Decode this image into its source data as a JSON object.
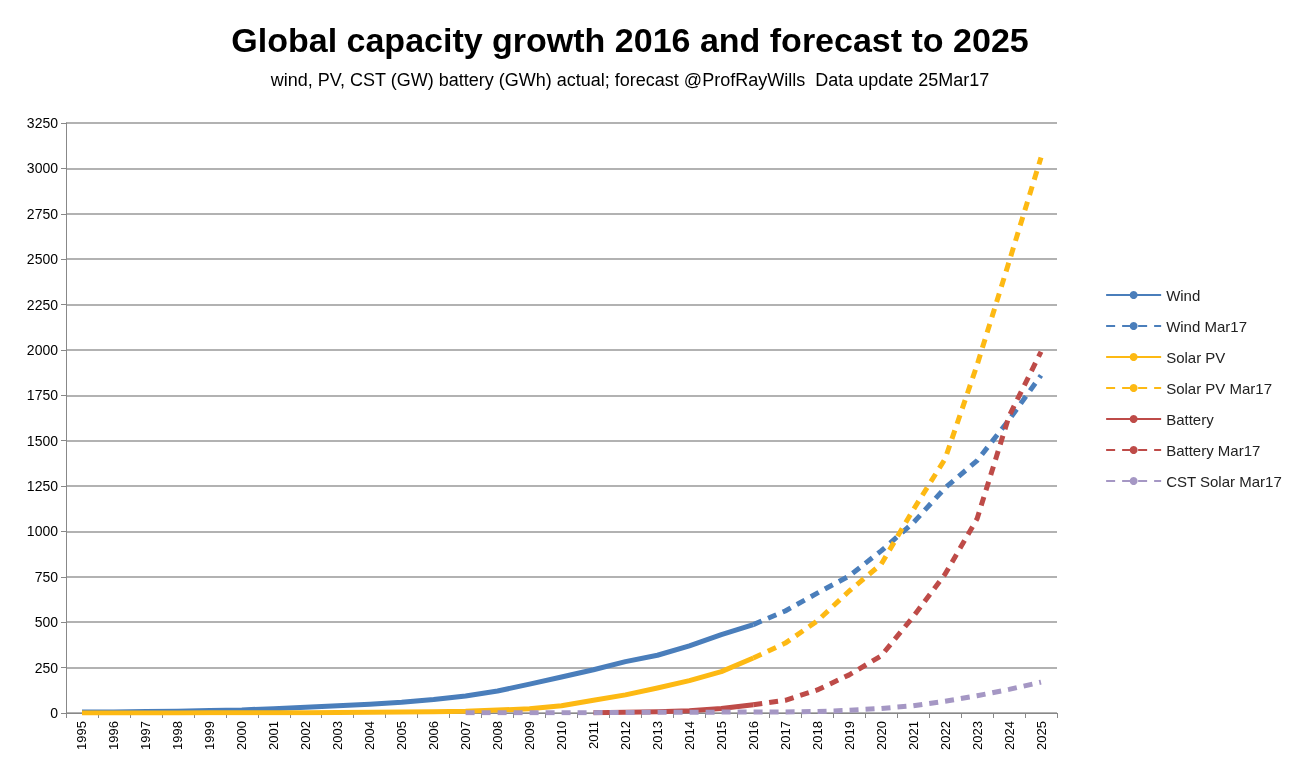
{
  "chart_data": {
    "type": "line",
    "title": "Global capacity growth 2016 and forecast to 2025",
    "subtitle": "wind, PV, CST (GW) battery (GWh) actual; forecast @ProfRayWills  Data update 25Mar17",
    "categories": [
      "1995",
      "1996",
      "1997",
      "1998",
      "1999",
      "2000",
      "2001",
      "2002",
      "2003",
      "2004",
      "2005",
      "2006",
      "2007",
      "2008",
      "2009",
      "2010",
      "2011",
      "2012",
      "2013",
      "2014",
      "2015",
      "2016",
      "2017",
      "2018",
      "2019",
      "2020",
      "2021",
      "2022",
      "2023",
      "2024",
      "2025"
    ],
    "series": [
      {
        "name": "Wind",
        "color": "#4a7ebb",
        "line_style": "solid",
        "values": [
          5,
          6,
          8,
          10,
          14,
          17,
          24,
          31,
          40,
          48,
          59,
          74,
          94,
          121,
          159,
          198,
          238,
          283,
          318,
          370,
          432,
          487,
          null,
          null,
          null,
          null,
          null,
          null,
          null,
          null,
          null
        ]
      },
      {
        "name": "Wind Mar17",
        "color": "#4a7ebb",
        "line_style": "dashed",
        "values": [
          null,
          null,
          null,
          null,
          null,
          null,
          null,
          null,
          null,
          null,
          null,
          null,
          null,
          null,
          null,
          null,
          null,
          null,
          null,
          null,
          null,
          487,
          562,
          660,
          755,
          893,
          1047,
          1240,
          1390,
          1615,
          1860
        ]
      },
      {
        "name": "Solar PV",
        "color": "#fdb913",
        "line_style": "solid",
        "values": [
          0,
          0,
          0,
          0,
          1,
          1,
          2,
          2,
          3,
          4,
          5,
          7,
          9,
          16,
          23,
          40,
          70,
          100,
          138,
          178,
          228,
          303,
          null,
          null,
          null,
          null,
          null,
          null,
          null,
          null,
          null
        ]
      },
      {
        "name": "Solar PV Mar17",
        "color": "#fdb913",
        "line_style": "dashed",
        "values": [
          null,
          null,
          null,
          null,
          null,
          null,
          null,
          null,
          null,
          null,
          null,
          null,
          null,
          null,
          null,
          null,
          null,
          null,
          null,
          null,
          null,
          303,
          385,
          507,
          672,
          820,
          1118,
          1400,
          1917,
          2485,
          3060
        ]
      },
      {
        "name": "Battery",
        "color": "#be4b48",
        "line_style": "solid",
        "values": [
          null,
          null,
          null,
          null,
          null,
          null,
          null,
          null,
          null,
          null,
          null,
          null,
          null,
          null,
          null,
          null,
          2,
          4,
          7,
          12,
          25,
          45,
          null,
          null,
          null,
          null,
          null,
          null,
          null,
          null,
          null
        ]
      },
      {
        "name": "Battery Mar17",
        "color": "#be4b48",
        "line_style": "dashed",
        "values": [
          null,
          null,
          null,
          null,
          null,
          null,
          null,
          null,
          null,
          null,
          null,
          null,
          null,
          null,
          null,
          null,
          null,
          null,
          null,
          null,
          null,
          45,
          70,
          127,
          210,
          315,
          530,
          765,
          1070,
          1635,
          1990
        ]
      },
      {
        "name": "CST Solar Mar17",
        "color": "#a597c4",
        "line_style": "dashed",
        "values": [
          null,
          null,
          null,
          null,
          null,
          null,
          null,
          null,
          null,
          null,
          null,
          null,
          1,
          1,
          1,
          1,
          2,
          3,
          4,
          4,
          5,
          5,
          6,
          8,
          15,
          25,
          40,
          65,
          95,
          130,
          170
        ]
      }
    ],
    "ylim": [
      0,
      3250
    ],
    "yticks": [
      0,
      250,
      500,
      750,
      1000,
      1250,
      1500,
      1750,
      2000,
      2250,
      2500,
      2750,
      3000,
      3250
    ],
    "grid": "y",
    "legend": "right",
    "marker": "none"
  }
}
